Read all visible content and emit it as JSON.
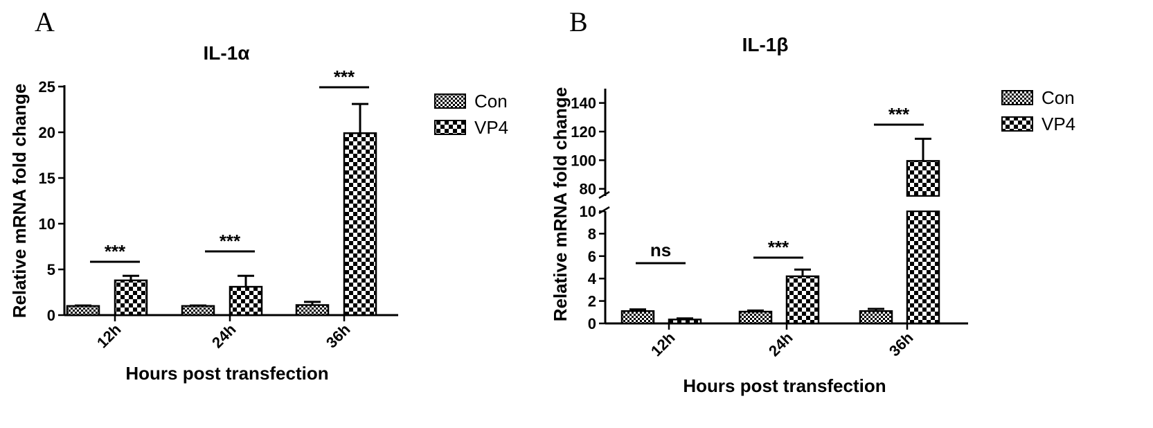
{
  "chart_data": [
    {
      "type": "bar",
      "panel": "A",
      "title": "IL-1α",
      "xlabel": "Hours post transfection",
      "ylabel": "Relative mRNA fold change",
      "ylim": [
        0,
        25
      ],
      "yticks": [
        "0",
        "5",
        "10",
        "15",
        "20",
        "25"
      ],
      "categories": [
        "12h",
        "24h",
        "36h"
      ],
      "series": [
        {
          "name": "Con",
          "values": [
            1.0,
            1.0,
            1.1
          ],
          "errors": [
            0.05,
            0.05,
            0.35
          ],
          "pattern": "fine"
        },
        {
          "name": "VP4",
          "values": [
            3.8,
            3.1,
            19.9
          ],
          "errors": [
            0.5,
            1.2,
            3.2
          ],
          "pattern": "coarse"
        }
      ],
      "significance": [
        "***",
        "***",
        "***"
      ],
      "legend_position": "right"
    },
    {
      "type": "bar",
      "panel": "B",
      "title": "IL-1β",
      "xlabel": "Hours post transfection",
      "ylabel": "Relative mRNA fold change",
      "broken_axis": {
        "lower": [
          0,
          10
        ],
        "upper": [
          75,
          150
        ]
      },
      "yticks": [
        "0",
        "2",
        "4",
        "6",
        "8",
        "10",
        "80",
        "100",
        "120",
        "140"
      ],
      "categories": [
        "12h",
        "24h",
        "36h"
      ],
      "series": [
        {
          "name": "Con",
          "values": [
            1.1,
            1.05,
            1.1
          ],
          "errors": [
            0.15,
            0.1,
            0.2
          ],
          "pattern": "fine"
        },
        {
          "name": "VP4",
          "values": [
            0.35,
            4.2,
            99.5
          ],
          "errors": [
            0.1,
            0.6,
            15.5
          ],
          "pattern": "coarse"
        }
      ],
      "significance": [
        "ns",
        "***",
        "***"
      ],
      "legend_position": "right"
    }
  ]
}
